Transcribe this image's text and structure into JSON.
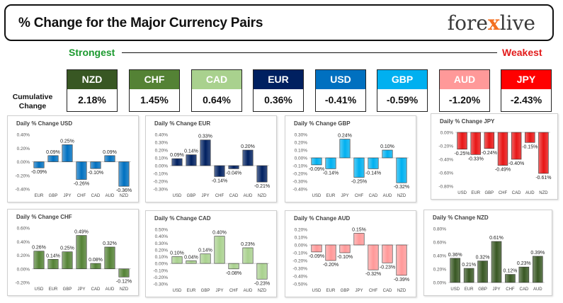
{
  "header": {
    "title": "% Change for the Major Currency Pairs",
    "logo_left": "fore",
    "logo_x": "x",
    "logo_right": "live"
  },
  "scale": {
    "strongest": "Strongest",
    "weakest": "Weakest"
  },
  "cumulative_label_line1": "Cumulative",
  "cumulative_label_line2": "Change",
  "currencies": [
    {
      "code": "NZD",
      "value": "2.18%",
      "color": "#385723"
    },
    {
      "code": "CHF",
      "value": "1.45%",
      "color": "#548235"
    },
    {
      "code": "CAD",
      "value": "0.64%",
      "color": "#a9d18e"
    },
    {
      "code": "EUR",
      "value": "0.36%",
      "color": "#002060"
    },
    {
      "code": "USD",
      "value": "-0.41%",
      "color": "#0070c0"
    },
    {
      "code": "GBP",
      "value": "-0.59%",
      "color": "#00b0f0"
    },
    {
      "code": "AUD",
      "value": "-1.20%",
      "color": "#ff9999"
    },
    {
      "code": "JPY",
      "value": "-2.43%",
      "color": "#ff0000"
    }
  ],
  "chart_data": [
    {
      "type": "bar",
      "title": "Daily % Change USD",
      "categories": [
        "EUR",
        "GBP",
        "JPY",
        "CHF",
        "CAD",
        "AUD",
        "NZD"
      ],
      "values": [
        -0.09,
        0.09,
        0.25,
        -0.26,
        -0.1,
        0.09,
        -0.36
      ],
      "labels": [
        "-0.09%",
        "0.09%",
        "0.25%",
        "-0.26%",
        "-0.10%",
        "0.09%",
        "-0.36%"
      ],
      "ylim": [
        -0.4,
        0.4
      ],
      "yticks": [
        "0.40%",
        "0.20%",
        "0.00%",
        "-0.20%",
        "-0.40%"
      ],
      "ytick_values": [
        0.4,
        0.2,
        0,
        -0.2,
        -0.4
      ],
      "color": "#0070c0"
    },
    {
      "type": "bar",
      "title": "Daily % Change EUR",
      "categories": [
        "USD",
        "GBP",
        "JPY",
        "CHF",
        "CAD",
        "AUD",
        "NZD"
      ],
      "values": [
        0.09,
        0.14,
        0.33,
        -0.14,
        -0.04,
        0.2,
        -0.21
      ],
      "labels": [
        "0.09%",
        "0.14%",
        "0.33%",
        "-0.14%",
        "-0.04%",
        "0.20%",
        "-0.21%"
      ],
      "ylim": [
        -0.3,
        0.4
      ],
      "yticks": [
        "0.40%",
        "0.30%",
        "0.20%",
        "0.10%",
        "0.00%",
        "-0.10%",
        "-0.20%",
        "-0.30%"
      ],
      "ytick_values": [
        0.4,
        0.3,
        0.2,
        0.1,
        0,
        -0.1,
        -0.2,
        -0.3
      ],
      "color": "#002060"
    },
    {
      "type": "bar",
      "title": "Daily % Change GBP",
      "categories": [
        "USD",
        "EUR",
        "JPY",
        "CHF",
        "CAD",
        "AUD",
        "NZD"
      ],
      "values": [
        -0.09,
        -0.14,
        0.24,
        -0.25,
        -0.14,
        0.1,
        -0.32
      ],
      "labels": [
        "-0.09%",
        "-0.14%",
        "0.24%",
        "-0.25%",
        "-0.14%",
        "0.10%",
        "-0.32%"
      ],
      "ylim": [
        -0.4,
        0.3
      ],
      "yticks": [
        "0.30%",
        "0.20%",
        "0.10%",
        "0.00%",
        "-0.10%",
        "-0.20%",
        "-0.30%",
        "-0.40%"
      ],
      "ytick_values": [
        0.3,
        0.2,
        0.1,
        0,
        -0.1,
        -0.2,
        -0.3,
        -0.4
      ],
      "color": "#00b0f0"
    },
    {
      "type": "bar",
      "title": "Daily % Change JPY",
      "categories": [
        "USD",
        "EUR",
        "GBP",
        "CHF",
        "CAD",
        "AUD",
        "NZD"
      ],
      "values": [
        -0.25,
        -0.33,
        -0.24,
        -0.49,
        -0.4,
        -0.15,
        -0.61
      ],
      "labels": [
        "-0.25%",
        "-0.33%",
        "-0.24%",
        "-0.49%",
        "-0.40%",
        "-0.15%",
        "-0.61%"
      ],
      "ylim": [
        -0.8,
        0
      ],
      "yticks": [
        "0.00%",
        "-0.20%",
        "-0.40%",
        "-0.60%",
        "-0.80%"
      ],
      "ytick_values": [
        0,
        -0.2,
        -0.4,
        -0.6,
        -0.8
      ],
      "color": "#e81515"
    },
    {
      "type": "bar",
      "title": "Daily % Change CHF",
      "categories": [
        "USD",
        "EUR",
        "GBP",
        "JPY",
        "CAD",
        "AUD",
        "NZD"
      ],
      "values": [
        0.26,
        0.14,
        0.25,
        0.49,
        0.08,
        0.32,
        -0.12
      ],
      "labels": [
        "0.26%",
        "0.14%",
        "0.25%",
        "0.49%",
        "0.08%",
        "0.32%",
        "-0.12%"
      ],
      "ylim": [
        -0.2,
        0.6
      ],
      "yticks": [
        "0.60%",
        "0.40%",
        "0.20%",
        "0.00%",
        "-0.20%"
      ],
      "ytick_values": [
        0.6,
        0.4,
        0.2,
        0,
        -0.2
      ],
      "color": "#548235"
    },
    {
      "type": "bar",
      "title": "Daily % Change CAD",
      "categories": [
        "USD",
        "EUR",
        "GBP",
        "JPY",
        "CHF",
        "AUD",
        "NZD"
      ],
      "values": [
        0.1,
        0.04,
        0.14,
        0.4,
        -0.08,
        0.23,
        -0.23
      ],
      "labels": [
        "0.10%",
        "0.04%",
        "0.14%",
        "0.40%",
        "-0.08%",
        "0.23%",
        "-0.23%"
      ],
      "ylim": [
        -0.3,
        0.5
      ],
      "yticks": [
        "0.50%",
        "0.40%",
        "0.30%",
        "0.20%",
        "0.10%",
        "0.00%",
        "-0.10%",
        "-0.20%",
        "-0.30%"
      ],
      "ytick_values": [
        0.5,
        0.4,
        0.3,
        0.2,
        0.1,
        0,
        -0.1,
        -0.2,
        -0.3
      ],
      "color": "#a9d18e"
    },
    {
      "type": "bar",
      "title": "Daily % Change AUD",
      "categories": [
        "USD",
        "EUR",
        "GBP",
        "JPY",
        "CHF",
        "CAD",
        "NZD"
      ],
      "values": [
        -0.09,
        -0.2,
        -0.1,
        0.15,
        -0.32,
        -0.23,
        -0.39
      ],
      "labels": [
        "-0.09%",
        "-0.20%",
        "-0.10%",
        "0.15%",
        "-0.32%",
        "-0.23%",
        "-0.39%"
      ],
      "ylim": [
        -0.5,
        0.2
      ],
      "yticks": [
        "0.20%",
        "0.10%",
        "0.00%",
        "-0.10%",
        "-0.20%",
        "-0.30%",
        "-0.40%",
        "-0.50%"
      ],
      "ytick_values": [
        0.2,
        0.1,
        0,
        -0.1,
        -0.2,
        -0.3,
        -0.4,
        -0.5
      ],
      "color": "#ff9999"
    },
    {
      "type": "bar",
      "title": "Daily % Change NZD",
      "categories": [
        "USD",
        "EUR",
        "GBP",
        "JPY",
        "CHF",
        "CAD",
        "AUD"
      ],
      "values": [
        0.36,
        0.21,
        0.32,
        0.61,
        0.12,
        0.23,
        0.39
      ],
      "labels": [
        "0.36%",
        "0.21%",
        "0.32%",
        "0.61%",
        "0.12%",
        "0.23%",
        "0.39%"
      ],
      "ylim": [
        0,
        0.8
      ],
      "yticks": [
        "0.80%",
        "0.60%",
        "0.40%",
        "0.20%",
        "0.00%"
      ],
      "ytick_values": [
        0.8,
        0.6,
        0.4,
        0.2,
        0
      ],
      "color": "#385723"
    }
  ]
}
